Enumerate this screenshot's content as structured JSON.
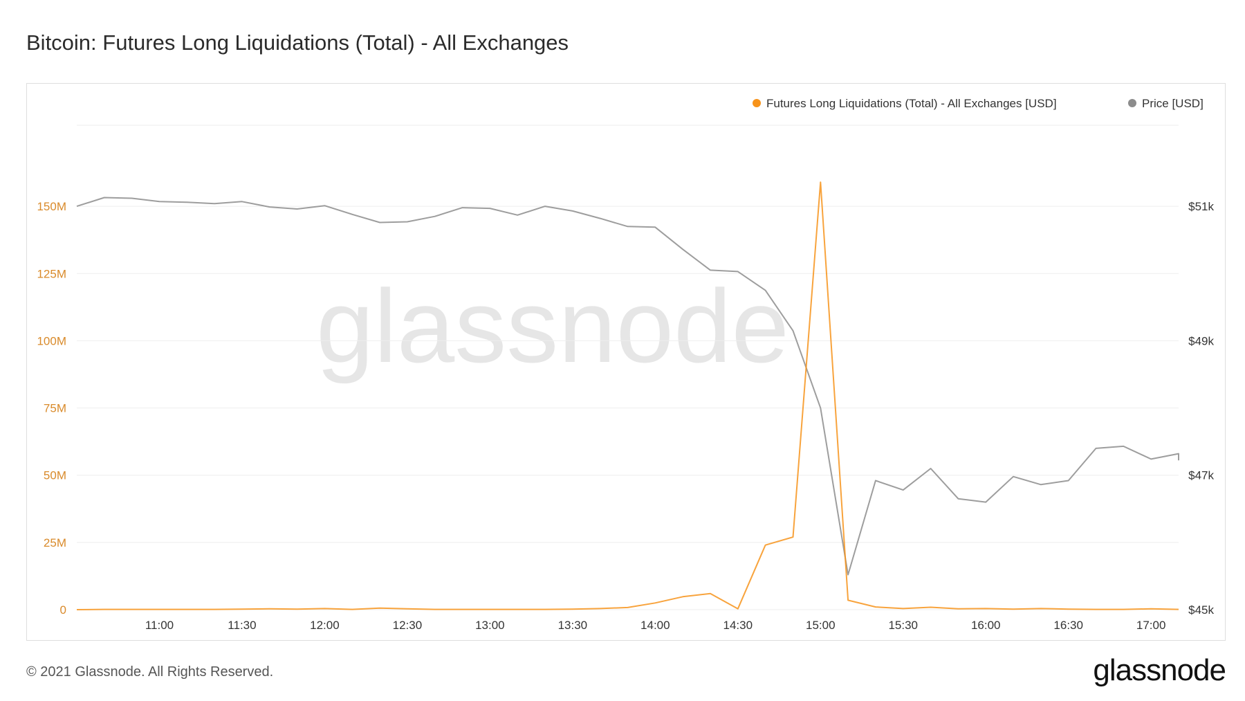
{
  "title": "Bitcoin: Futures Long Liquidations (Total) - All Exchanges",
  "footer": "© 2021 Glassnode. All Rights Reserved.",
  "brand": "glassnode",
  "watermark": "glassnode",
  "colors": {
    "liquidations": "#f7931a",
    "price": "#8c8c8c",
    "left_axis_text": "#d98a2a",
    "grid": "#eeeeee"
  },
  "chart_data": {
    "type": "line",
    "legend_position": "top-right",
    "grid": true,
    "x_ticks": [
      "11:00",
      "11:30",
      "12:00",
      "12:30",
      "13:00",
      "13:30",
      "14:00",
      "14:30",
      "15:00",
      "15:30",
      "16:00",
      "16:30",
      "17:00"
    ],
    "x_range": [
      "10:30",
      "17:10"
    ],
    "left_axis": {
      "ticks": [
        "0",
        "25M",
        "50M",
        "75M",
        "100M",
        "125M",
        "150M"
      ],
      "range": [
        0,
        175000000
      ]
    },
    "right_axis": {
      "ticks": [
        "$45k",
        "$47k",
        "$49k",
        "$51k"
      ],
      "range": [
        45000,
        52000
      ]
    },
    "x": [
      "10:30",
      "10:40",
      "10:50",
      "11:00",
      "11:10",
      "11:20",
      "11:30",
      "11:40",
      "11:50",
      "12:00",
      "12:10",
      "12:20",
      "12:30",
      "12:40",
      "12:50",
      "13:00",
      "13:10",
      "13:20",
      "13:30",
      "13:40",
      "13:50",
      "14:00",
      "14:10",
      "14:20",
      "14:30",
      "14:40",
      "14:50",
      "15:00",
      "15:10",
      "15:20",
      "15:30",
      "15:40",
      "15:50",
      "16:00",
      "16:10",
      "16:20",
      "16:30",
      "16:40",
      "16:50",
      "17:00",
      "17:10",
      "17:10"
    ],
    "series": [
      {
        "name": "Futures Long Liquidations (Total) - All Exchanges [USD]",
        "axis": "left",
        "values": [
          0,
          100000,
          100000,
          100000,
          100000,
          100000,
          200000,
          300000,
          200000,
          400000,
          100000,
          600000,
          300000,
          100000,
          100000,
          100000,
          100000,
          100000,
          200000,
          400000,
          800000,
          2500000,
          4800000,
          6000000,
          300000,
          24000000,
          27000000,
          159000000,
          3500000,
          1000000,
          400000,
          900000,
          300000,
          400000,
          200000,
          400000,
          200000,
          100000,
          100000,
          300000,
          100000,
          100000
        ]
      },
      {
        "name": "Price [USD]",
        "axis": "right",
        "values": [
          51000,
          51130,
          51120,
          51070,
          51060,
          51040,
          51070,
          50990,
          50960,
          51010,
          50880,
          50760,
          50770,
          50850,
          50980,
          50970,
          50870,
          51000,
          50930,
          50820,
          50700,
          50690,
          50360,
          50050,
          50030,
          49750,
          49150,
          48000,
          45520,
          46920,
          46780,
          47100,
          46650,
          46600,
          46980,
          46860,
          46920,
          47400,
          47430,
          47240,
          47320,
          47220
        ]
      }
    ]
  }
}
